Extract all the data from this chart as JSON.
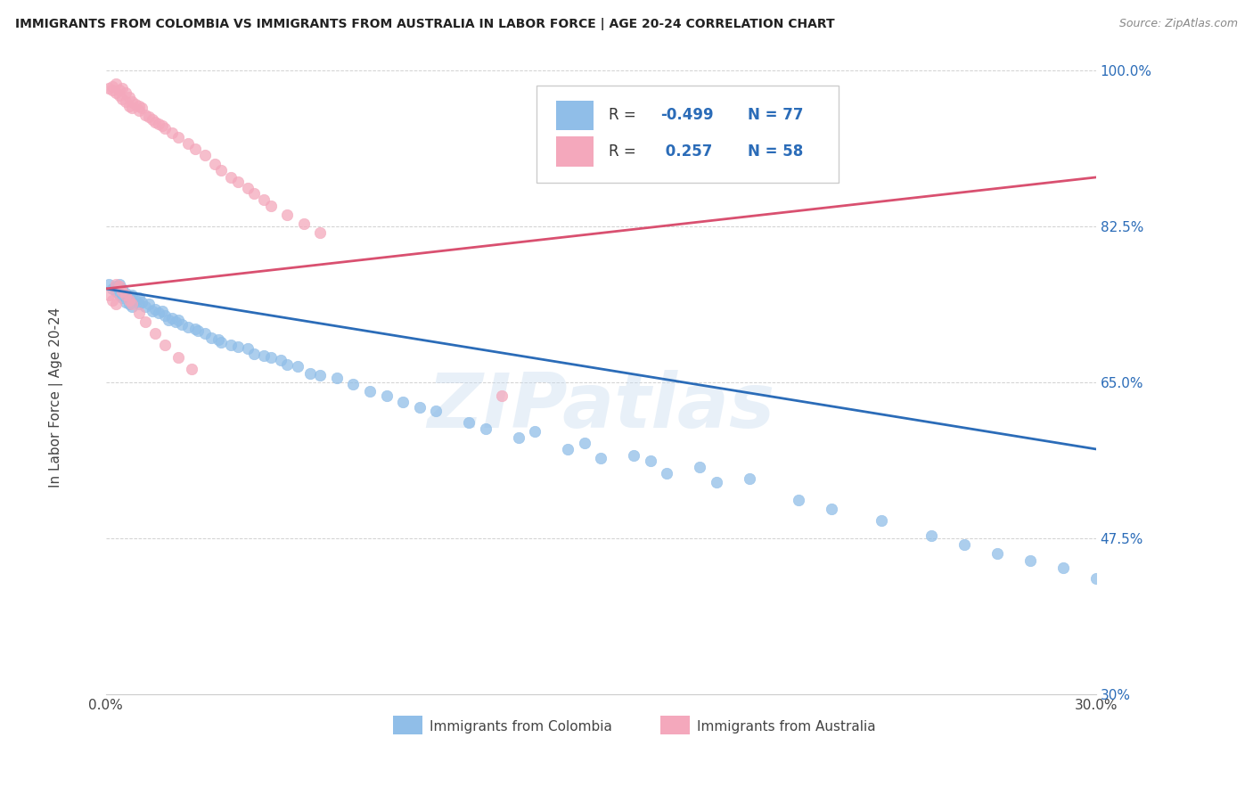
{
  "title": "IMMIGRANTS FROM COLOMBIA VS IMMIGRANTS FROM AUSTRALIA IN LABOR FORCE | AGE 20-24 CORRELATION CHART",
  "source": "Source: ZipAtlas.com",
  "ylabel": "In Labor Force | Age 20-24",
  "xlabel_blue": "Immigrants from Colombia",
  "xlabel_pink": "Immigrants from Australia",
  "xlim": [
    0.0,
    0.3
  ],
  "ylim": [
    0.3,
    1.0
  ],
  "xtick_vals": [
    0.0,
    0.05,
    0.1,
    0.15,
    0.2,
    0.25,
    0.3
  ],
  "xtick_labels": [
    "0.0%",
    "",
    "",
    "",
    "",
    "",
    "30.0%"
  ],
  "ytick_vals": [
    0.3,
    0.475,
    0.65,
    0.825,
    1.0
  ],
  "ytick_labels": [
    "30%",
    "47.5%",
    "65.0%",
    "82.5%",
    "100.0%"
  ],
  "R_blue": -0.499,
  "N_blue": 77,
  "R_pink": 0.257,
  "N_pink": 58,
  "color_blue": "#90BEE8",
  "color_pink": "#F4A8BC",
  "line_color_blue": "#2B6CB8",
  "line_color_pink": "#D95070",
  "watermark": "ZIPatlas",
  "blue_x": [
    0.001,
    0.002,
    0.003,
    0.003,
    0.004,
    0.004,
    0.005,
    0.005,
    0.006,
    0.006,
    0.007,
    0.007,
    0.008,
    0.008,
    0.009,
    0.01,
    0.01,
    0.011,
    0.012,
    0.013,
    0.014,
    0.015,
    0.016,
    0.017,
    0.018,
    0.019,
    0.02,
    0.021,
    0.022,
    0.023,
    0.025,
    0.027,
    0.028,
    0.03,
    0.032,
    0.034,
    0.035,
    0.038,
    0.04,
    0.043,
    0.045,
    0.048,
    0.05,
    0.053,
    0.055,
    0.058,
    0.062,
    0.065,
    0.07,
    0.075,
    0.08,
    0.085,
    0.09,
    0.095,
    0.1,
    0.11,
    0.115,
    0.125,
    0.14,
    0.15,
    0.17,
    0.185,
    0.21,
    0.22,
    0.235,
    0.18,
    0.195,
    0.25,
    0.26,
    0.27,
    0.28,
    0.29,
    0.3,
    0.165,
    0.13,
    0.145,
    0.16
  ],
  "blue_y": [
    0.76,
    0.755,
    0.758,
    0.752,
    0.76,
    0.748,
    0.755,
    0.745,
    0.75,
    0.74,
    0.745,
    0.738,
    0.748,
    0.735,
    0.742,
    0.745,
    0.738,
    0.74,
    0.735,
    0.738,
    0.73,
    0.732,
    0.728,
    0.73,
    0.725,
    0.72,
    0.722,
    0.718,
    0.72,
    0.715,
    0.712,
    0.71,
    0.708,
    0.705,
    0.7,
    0.698,
    0.695,
    0.692,
    0.69,
    0.688,
    0.682,
    0.68,
    0.678,
    0.675,
    0.67,
    0.668,
    0.66,
    0.658,
    0.655,
    0.648,
    0.64,
    0.635,
    0.628,
    0.622,
    0.618,
    0.605,
    0.598,
    0.588,
    0.575,
    0.565,
    0.548,
    0.538,
    0.518,
    0.508,
    0.495,
    0.555,
    0.542,
    0.478,
    0.468,
    0.458,
    0.45,
    0.442,
    0.43,
    0.562,
    0.595,
    0.582,
    0.568
  ],
  "pink_x": [
    0.001,
    0.002,
    0.002,
    0.003,
    0.003,
    0.004,
    0.004,
    0.005,
    0.005,
    0.006,
    0.006,
    0.007,
    0.007,
    0.008,
    0.008,
    0.009,
    0.01,
    0.01,
    0.011,
    0.012,
    0.013,
    0.014,
    0.015,
    0.016,
    0.017,
    0.018,
    0.02,
    0.022,
    0.025,
    0.027,
    0.03,
    0.033,
    0.035,
    0.038,
    0.04,
    0.043,
    0.045,
    0.048,
    0.05,
    0.055,
    0.06,
    0.065,
    0.003,
    0.004,
    0.005,
    0.006,
    0.007,
    0.008,
    0.01,
    0.012,
    0.015,
    0.018,
    0.022,
    0.026,
    0.001,
    0.002,
    0.003,
    0.12
  ],
  "pink_y": [
    0.98,
    0.978,
    0.982,
    0.975,
    0.985,
    0.978,
    0.972,
    0.98,
    0.968,
    0.975,
    0.965,
    0.97,
    0.96,
    0.965,
    0.958,
    0.962,
    0.96,
    0.955,
    0.958,
    0.95,
    0.948,
    0.945,
    0.942,
    0.94,
    0.938,
    0.935,
    0.93,
    0.925,
    0.918,
    0.912,
    0.905,
    0.895,
    0.888,
    0.88,
    0.875,
    0.868,
    0.862,
    0.855,
    0.848,
    0.838,
    0.828,
    0.818,
    0.76,
    0.758,
    0.752,
    0.748,
    0.742,
    0.738,
    0.728,
    0.718,
    0.705,
    0.692,
    0.678,
    0.665,
    0.748,
    0.742,
    0.738,
    0.635
  ]
}
